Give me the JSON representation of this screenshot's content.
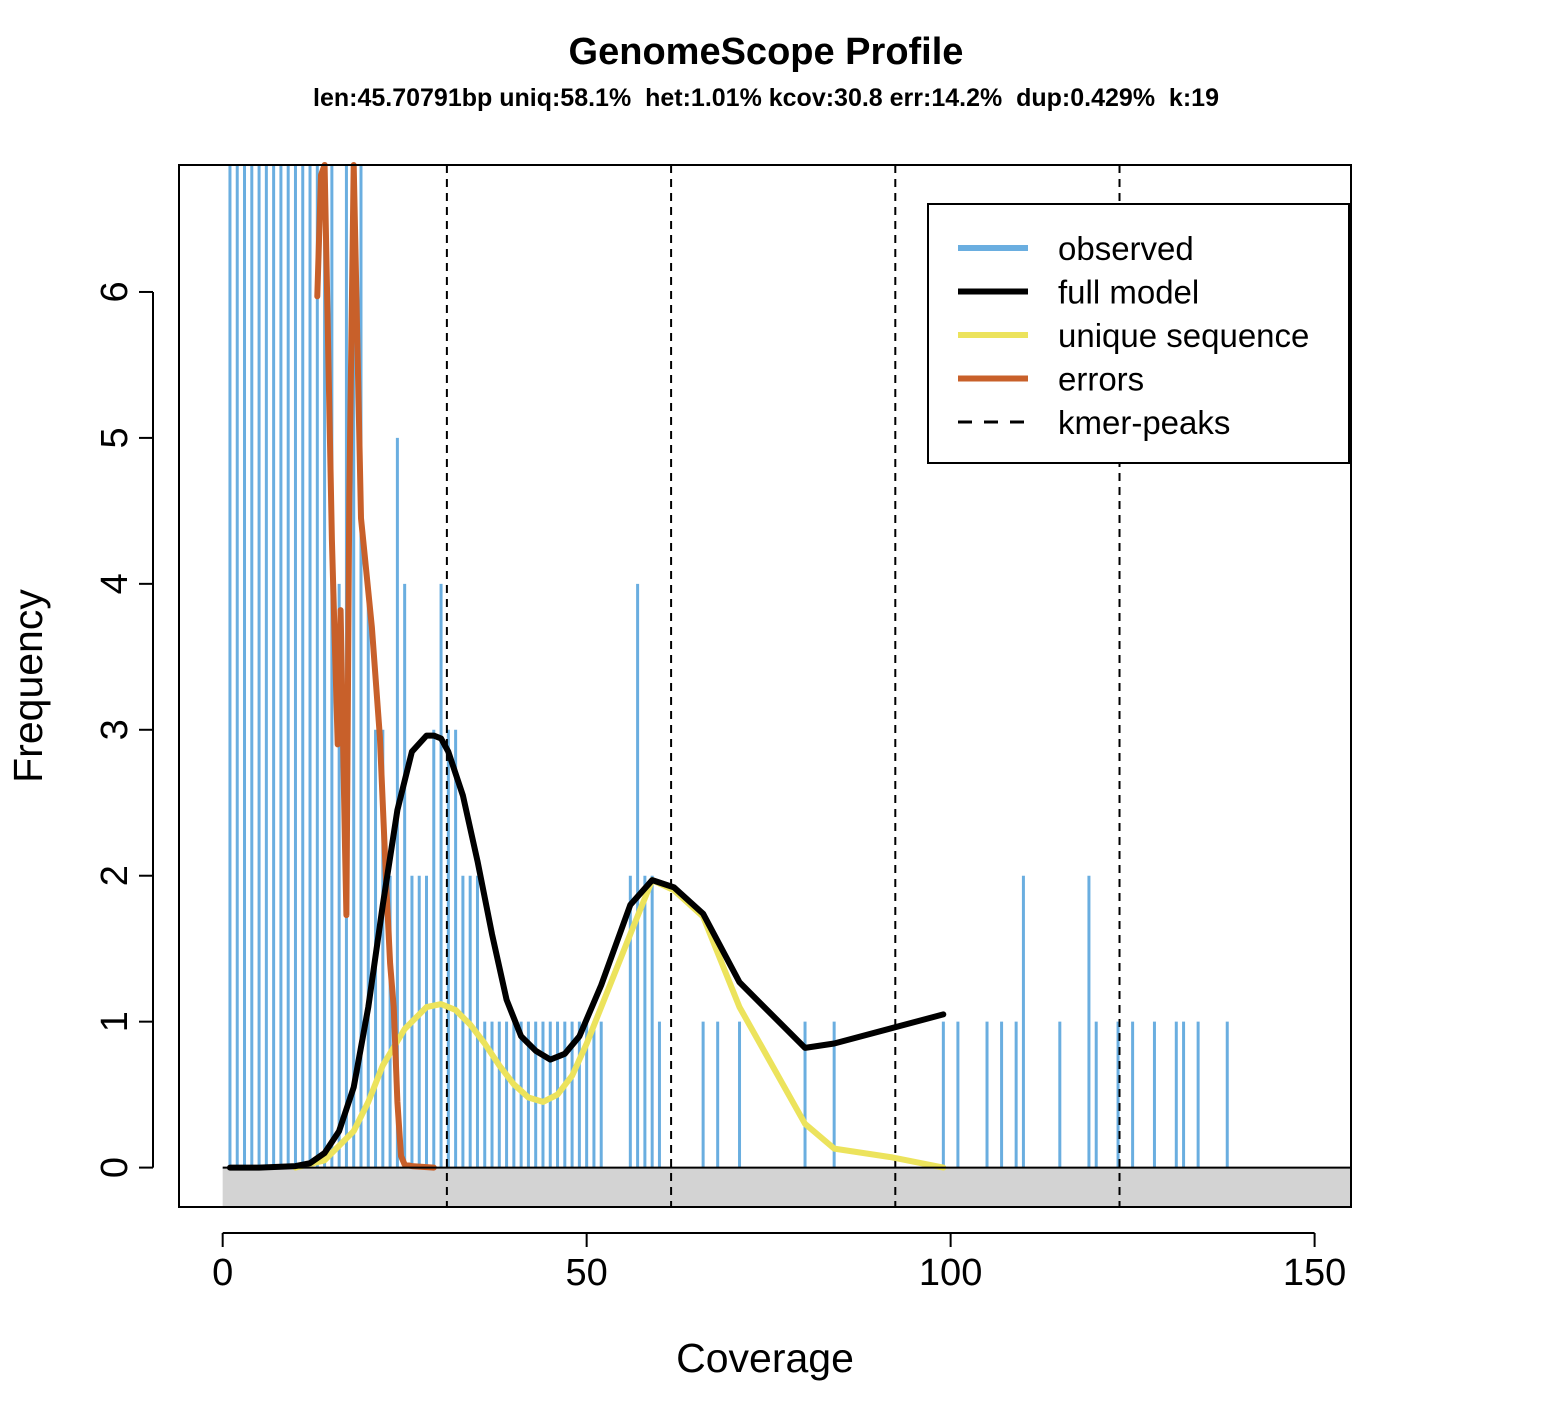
{
  "chart_data": {
    "type": "bar",
    "title": "GenomeScope Profile",
    "subtitle": "len:45.70791bp uniq:58.1%  het:1.01% kcov:30.8 err:14.2%  dup:0.429%  k:19",
    "xlabel": "Coverage",
    "ylabel": "Frequency",
    "xlim": [
      -6,
      155
    ],
    "ylim": [
      -0.27,
      6.87
    ],
    "xticks": [
      0,
      50,
      100,
      150
    ],
    "yticks": [
      0,
      1,
      2,
      3,
      4,
      5,
      6
    ],
    "grid": false,
    "legend_position": "top-right",
    "colors": {
      "observed": "#6aaee0",
      "full_model": "#000000",
      "unique_sequence": "#ece35c",
      "errors": "#c8602a",
      "kmer_peaks": "#000000",
      "zero_band": "#d3d3d3"
    },
    "legend": [
      {
        "key": "observed",
        "label": "observed",
        "style": "line"
      },
      {
        "key": "full_model",
        "label": "full model",
        "style": "line"
      },
      {
        "key": "unique_sequence",
        "label": "unique sequence",
        "style": "line"
      },
      {
        "key": "errors",
        "label": "errors",
        "style": "line"
      },
      {
        "key": "kmer_peaks",
        "label": "kmer-peaks",
        "style": "dashed"
      }
    ],
    "observed": {
      "x": [
        1,
        2,
        3,
        4,
        5,
        6,
        7,
        8,
        9,
        10,
        11,
        12,
        13,
        14,
        15,
        16,
        17,
        18,
        19,
        20,
        21,
        22,
        23,
        24,
        25,
        26,
        27,
        28,
        29,
        30,
        31,
        32,
        33,
        34,
        35,
        36,
        37,
        38,
        39,
        40,
        41,
        42,
        43,
        44,
        45,
        46,
        47,
        48,
        49,
        50,
        51,
        52,
        56,
        57,
        58,
        59,
        60,
        66,
        68,
        71,
        80,
        84,
        99,
        101,
        105,
        107,
        109,
        110,
        115,
        119,
        120,
        123,
        125,
        128,
        131,
        132,
        134,
        138
      ],
      "y": [
        7,
        7,
        7,
        7,
        7,
        7,
        7,
        7,
        7,
        7,
        7,
        7,
        7,
        7,
        7,
        4,
        7,
        7,
        7,
        4,
        3,
        3,
        2,
        5,
        4,
        2,
        2,
        2,
        3,
        4,
        3,
        3,
        2,
        2,
        2,
        1,
        1,
        1,
        1,
        1,
        1,
        1,
        1,
        1,
        1,
        1,
        1,
        1,
        1,
        1,
        1,
        1,
        2,
        4,
        2,
        2,
        1,
        1,
        1,
        1,
        1,
        1,
        1,
        1,
        1,
        1,
        1,
        2,
        1,
        2,
        1,
        1,
        1,
        1,
        1,
        1,
        1,
        1
      ]
    },
    "full_model": {
      "x": [
        1,
        5,
        10,
        12,
        14,
        16,
        18,
        20,
        22,
        24,
        26,
        28,
        29,
        30,
        31,
        33,
        35,
        37,
        39,
        41,
        43,
        45,
        47,
        49,
        52,
        56,
        59,
        62,
        66,
        71,
        80,
        84,
        99
      ],
      "y": [
        0,
        0,
        0.01,
        0.03,
        0.1,
        0.25,
        0.55,
        1.1,
        1.8,
        2.45,
        2.85,
        2.96,
        2.96,
        2.94,
        2.85,
        2.55,
        2.1,
        1.6,
        1.15,
        0.9,
        0.8,
        0.74,
        0.78,
        0.9,
        1.25,
        1.8,
        1.97,
        1.92,
        1.74,
        1.27,
        0.82,
        0.85,
        1.05
      ]
    },
    "unique_sequence": {
      "x": [
        10,
        14,
        18,
        20,
        22,
        25,
        28,
        30,
        32,
        34,
        36,
        38,
        40,
        42,
        44,
        46,
        48,
        50,
        52,
        56,
        59,
        62,
        66,
        71,
        80,
        84,
        92,
        99
      ],
      "y": [
        0,
        0.05,
        0.25,
        0.45,
        0.7,
        0.95,
        1.1,
        1.12,
        1.08,
        0.98,
        0.85,
        0.7,
        0.57,
        0.48,
        0.45,
        0.5,
        0.63,
        0.85,
        1.1,
        1.6,
        1.97,
        1.9,
        1.72,
        1.1,
        0.3,
        0.13,
        0.07,
        0
      ]
    },
    "errors": {
      "x": [
        13,
        13.5,
        14,
        15,
        15.8,
        16.2,
        16.8,
        17,
        17.4,
        18,
        19,
        20.5,
        21.6,
        22.5,
        23,
        23.5,
        24,
        24.5,
        25,
        26,
        29
      ],
      "y": [
        5.97,
        6.8,
        6.87,
        4.3,
        2.9,
        3.82,
        2.2,
        1.73,
        4.6,
        6.87,
        4.45,
        3.7,
        2.95,
        1.9,
        1.4,
        1.1,
        0.45,
        0.08,
        0.02,
        0.01,
        0
      ]
    },
    "kmer_peaks": [
      30.8,
      61.6,
      92.4,
      123.2
    ]
  }
}
